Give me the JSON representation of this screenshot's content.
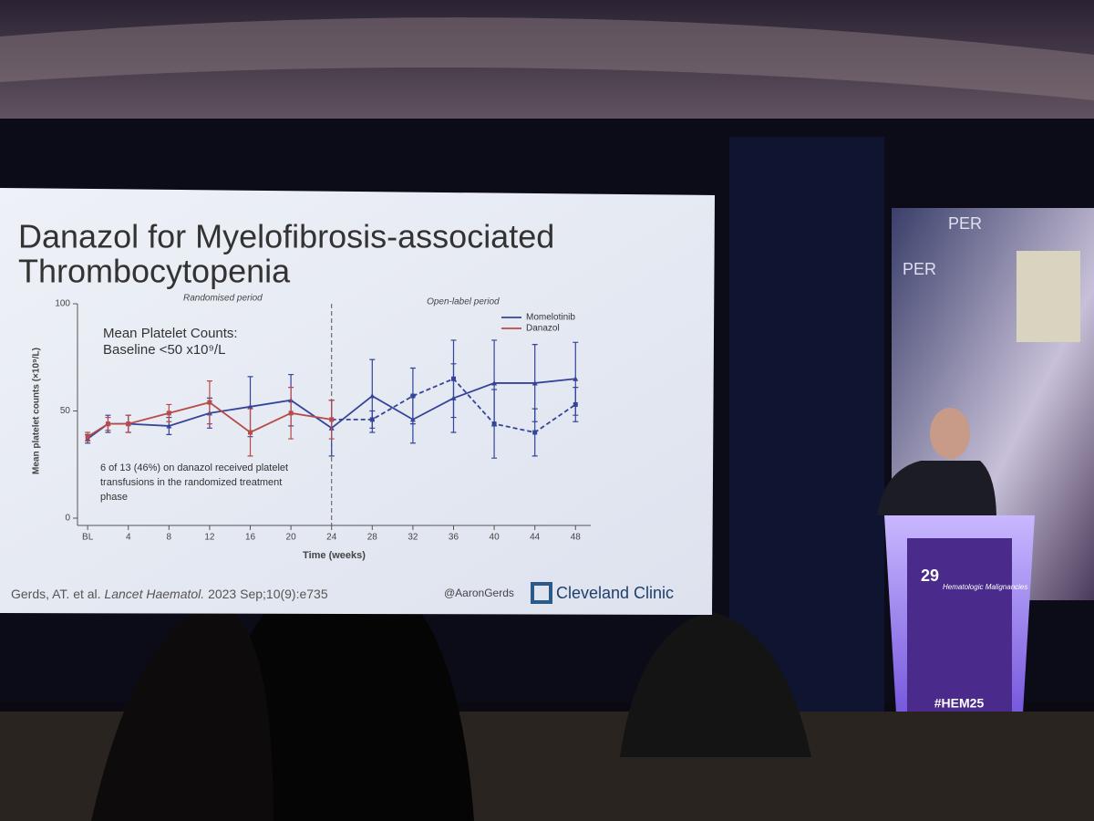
{
  "chart_data": {
    "type": "line",
    "title": "Danazol for Myelofibrosis-associated",
    "title_line2": "Thrombocytopenia",
    "xlabel": "Time (weeks)",
    "ylabel": "Mean platelet counts (×10⁹/L)",
    "annotations": [
      "Mean Platelet Counts:",
      "Baseline <50 x10⁹/L",
      "6 of 13 (46%) on danazol received platelet",
      "transfusions in the randomized treatment",
      "phase"
    ],
    "period_labels": [
      "Randomised period",
      "Open-label period"
    ],
    "divider": 24,
    "x": [
      0,
      2,
      4,
      8,
      12,
      16,
      20,
      24,
      28,
      32,
      36,
      40,
      44,
      48
    ],
    "xlim": [
      -1,
      49.5
    ],
    "xticks": [
      {
        "value": 0,
        "label": "BL"
      },
      4,
      8,
      12,
      16,
      20,
      24,
      28,
      32,
      36,
      40,
      44,
      48
    ],
    "ylim": [
      0,
      100
    ],
    "yticks": [
      0,
      50,
      100
    ],
    "legend": "top-right",
    "series": [
      {
        "name": "Momelotinib",
        "color": "#34449a",
        "marker": "triangle",
        "values": [
          37,
          44,
          44,
          43,
          49,
          52,
          55,
          42,
          57,
          46,
          56,
          63,
          63,
          65
        ],
        "errors": [
          2,
          4,
          4,
          4,
          7,
          14,
          12,
          13,
          17,
          11,
          16,
          20,
          18,
          17
        ]
      },
      {
        "name": "Danazol",
        "color": "#b84a4a",
        "marker": "square",
        "post_color": "#34449a",
        "values": [
          38,
          44,
          44,
          49,
          54,
          40,
          49,
          46,
          46,
          57,
          65,
          44,
          40,
          53
        ],
        "errors": [
          2,
          3,
          4,
          4,
          10,
          11,
          12,
          9,
          4,
          13,
          18,
          16,
          11,
          8
        ]
      }
    ]
  },
  "slide_footer": {
    "citation": "Gerds, AT. et al.",
    "journal": "Lancet Haematol.",
    "reference": "2023 Sep;10(9):e735",
    "handle": "@AaronGerds",
    "brand": "Cleveland Clinic"
  },
  "scene": {
    "banner": "PER",
    "podium_number": "29",
    "podium_title": "Hematologic Malignancies",
    "hashtag": "#HEM25"
  }
}
